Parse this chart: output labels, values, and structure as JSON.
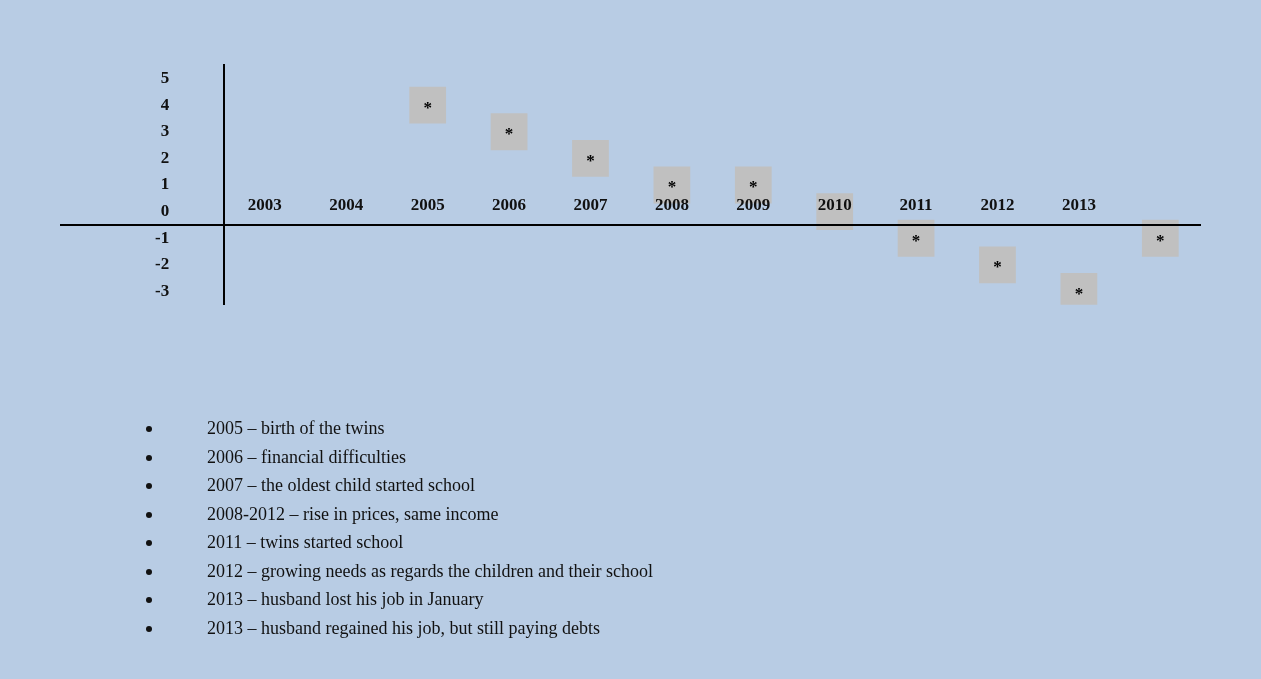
{
  "chart_data": {
    "type": "scatter",
    "categories": [
      "2003",
      "2004",
      "2005",
      "2006",
      "2007",
      "2008",
      "2009",
      "2010",
      "2011",
      "2012",
      "2013",
      null
    ],
    "values": [
      null,
      null,
      4,
      3,
      2,
      1,
      1,
      0,
      -1,
      -2,
      -3,
      -1
    ],
    "value_labels": [
      null,
      null,
      "*",
      "*",
      "*",
      "*",
      "*",
      null,
      "*",
      "*",
      "*",
      "*"
    ],
    "color": "#c0c0c0",
    "marker": "square",
    "ylim": [
      -3.5,
      5.5
    ],
    "yticks": [
      -3,
      -2,
      -1,
      0,
      1,
      2,
      3,
      4,
      5
    ],
    "annotations": [
      "2005 – birth of the twins",
      "2006 – financial difficulties",
      "2007 – the oldest child started school",
      "2008-2012 – rise in prices, same income",
      "2011 – twins started school",
      "2012 – growing needs as regards the children and their school",
      "2013 – husband lost his job in January",
      "2013 – husband regained his job, but still paying debts"
    ]
  }
}
